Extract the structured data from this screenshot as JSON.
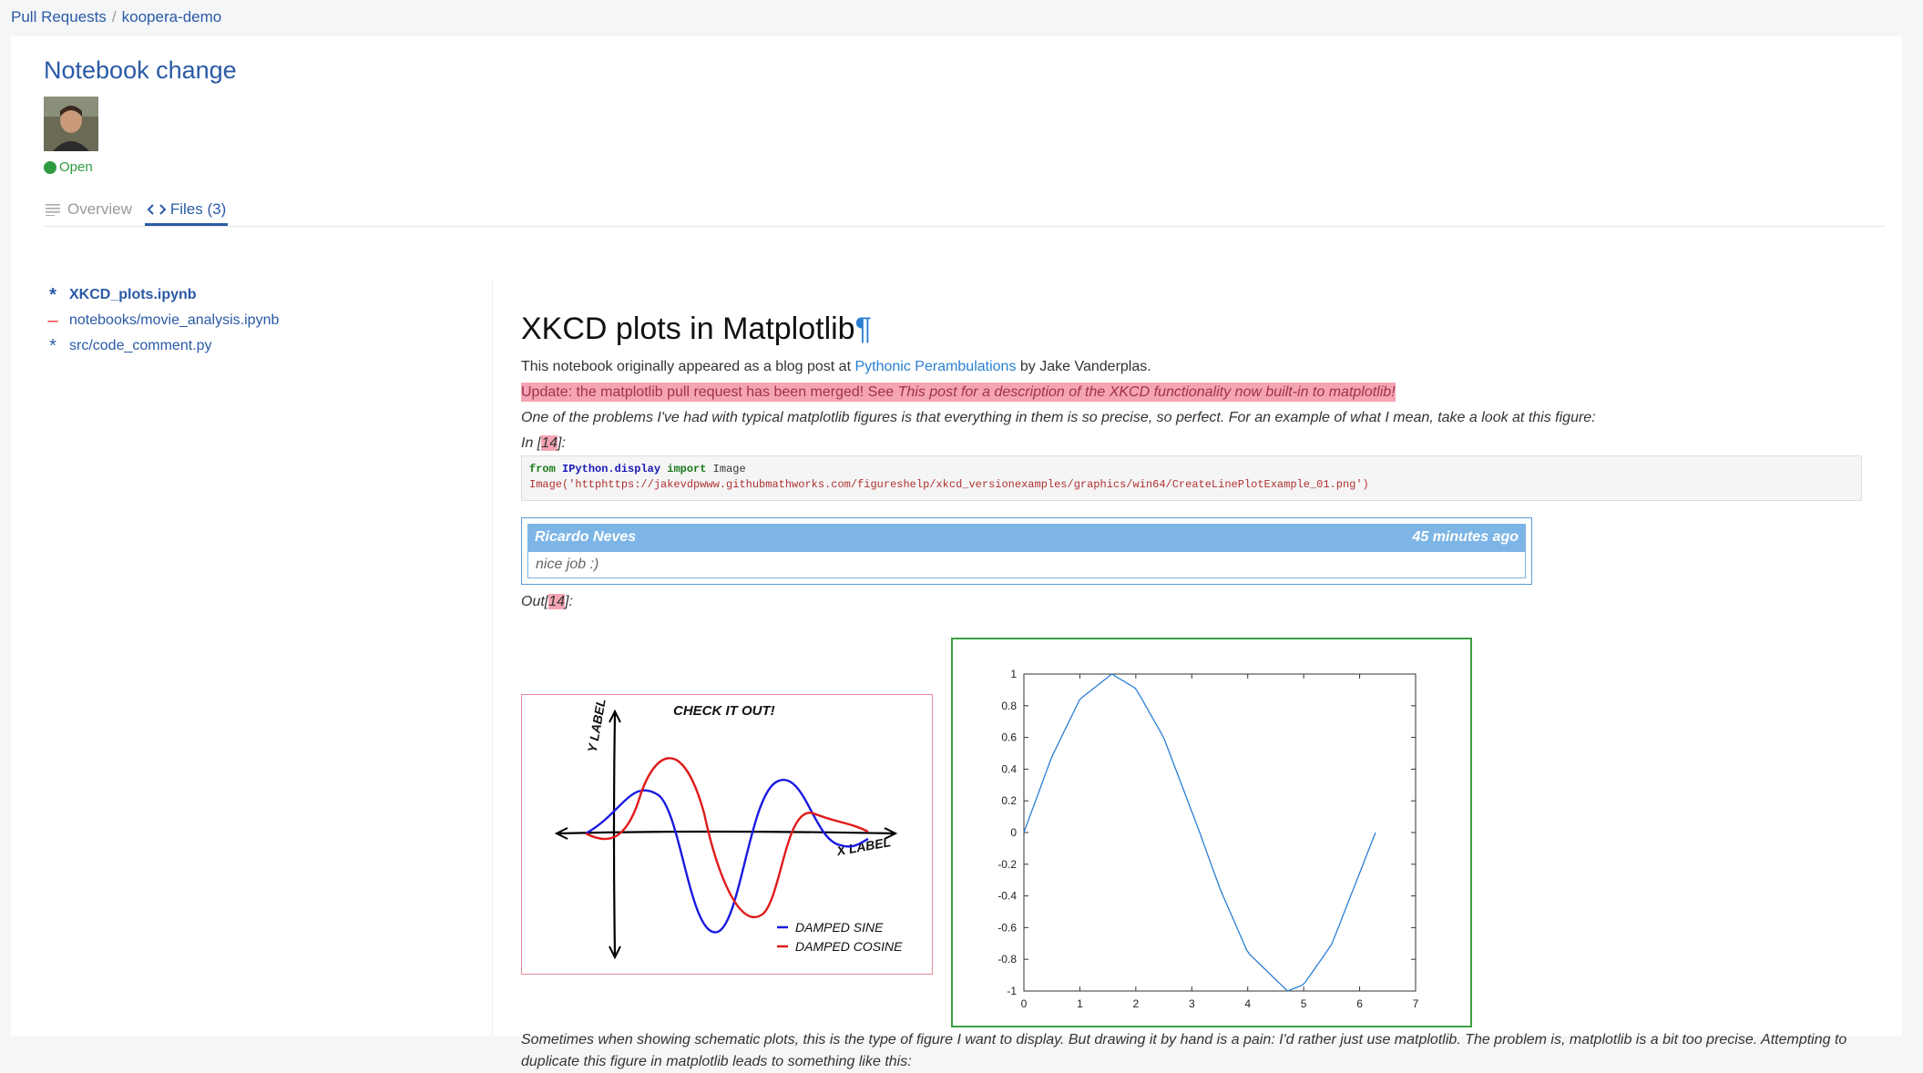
{
  "breadcrumb": {
    "root": "Pull Requests",
    "repo": "koopera-demo"
  },
  "pr": {
    "title": "Notebook change",
    "status": "Open"
  },
  "tabs": {
    "overview": "Overview",
    "files": "Files (3)"
  },
  "files": [
    {
      "name": "XKCD_plots.ipynb",
      "marker": "*",
      "change": "modified"
    },
    {
      "name": "notebooks/movie_analysis.ipynb",
      "marker": "–",
      "change": "deleted"
    },
    {
      "name": "src/code_comment.py",
      "marker": "*",
      "change": "modified"
    }
  ],
  "notebook": {
    "heading": "XKCD plots in Matplotlib",
    "pilcrow": "¶",
    "intro_prefix": "This notebook originally appeared as a blog post at ",
    "intro_link": "Pythonic Perambulations",
    "intro_suffix": " by Jake Vanderplas.",
    "update_prefix": "Update: the matplotlib pull request has been merged! See ",
    "update_italic": "This post for a description of the XKCD functionality now built-in to matplotlib!",
    "problem_text": "One of the problems I've had with typical matplotlib figures is that everything in them is so precise, so perfect. For an example of what I mean, take a look at this figure:",
    "in_label": "In [",
    "in_num": "14",
    "in_close": "]:",
    "out_label": "Out[",
    "out_close": "]:",
    "code_line1": {
      "from": "from",
      "module": "IPython.display",
      "import": "import",
      "name": "Image"
    },
    "code_line2_text": "Image('httphttps://jakevdpwww.githubmathworks.com/figureshelp/xkcd_versionexamples/graphics/win64/CreateLinePlotExample_01.png')",
    "comment": {
      "author": "Ricardo Neves",
      "time": "45 minutes ago",
      "body": "nice job :)"
    },
    "bottom_text": "Sometimes when showing schematic plots, this is the type of figure I want to display. But drawing it by hand is a pain: I'd rather just use matplotlib. The problem is, matplotlib is a bit too precise. Attempting to duplicate this figure in matplotlib leads to something like this:"
  },
  "xkcd_figure": {
    "title": "CHECK IT OUT!",
    "xlabel": "X LABEL",
    "ylabel": "Y LABEL",
    "legend": [
      "DAMPED SINE",
      "DAMPED COSINE"
    ],
    "colors": {
      "sine": "#1a1ae0",
      "cosine": "#e01a1a"
    }
  },
  "chart_data": {
    "type": "line",
    "title": "",
    "xlabel": "",
    "ylabel": "",
    "xlim": [
      0,
      7
    ],
    "ylim": [
      -1,
      1
    ],
    "xticks": [
      0,
      1,
      2,
      3,
      4,
      5,
      6,
      7
    ],
    "yticks": [
      1,
      0.8,
      0.6,
      0.4,
      0.2,
      0,
      -0.2,
      -0.4,
      -0.6,
      -0.8,
      -1
    ],
    "series": [
      {
        "x": [
          0,
          0.5,
          1.0,
          1.5708,
          2.0,
          2.5,
          3.1416,
          3.5,
          4.0,
          4.7124,
          5.0,
          5.5,
          6.2832
        ],
        "y": [
          0,
          0.479,
          0.841,
          1.0,
          0.909,
          0.598,
          0,
          -0.351,
          -0.757,
          -1.0,
          -0.959,
          -0.706,
          0
        ],
        "color": "#2a7fd4"
      }
    ],
    "grid": false
  }
}
